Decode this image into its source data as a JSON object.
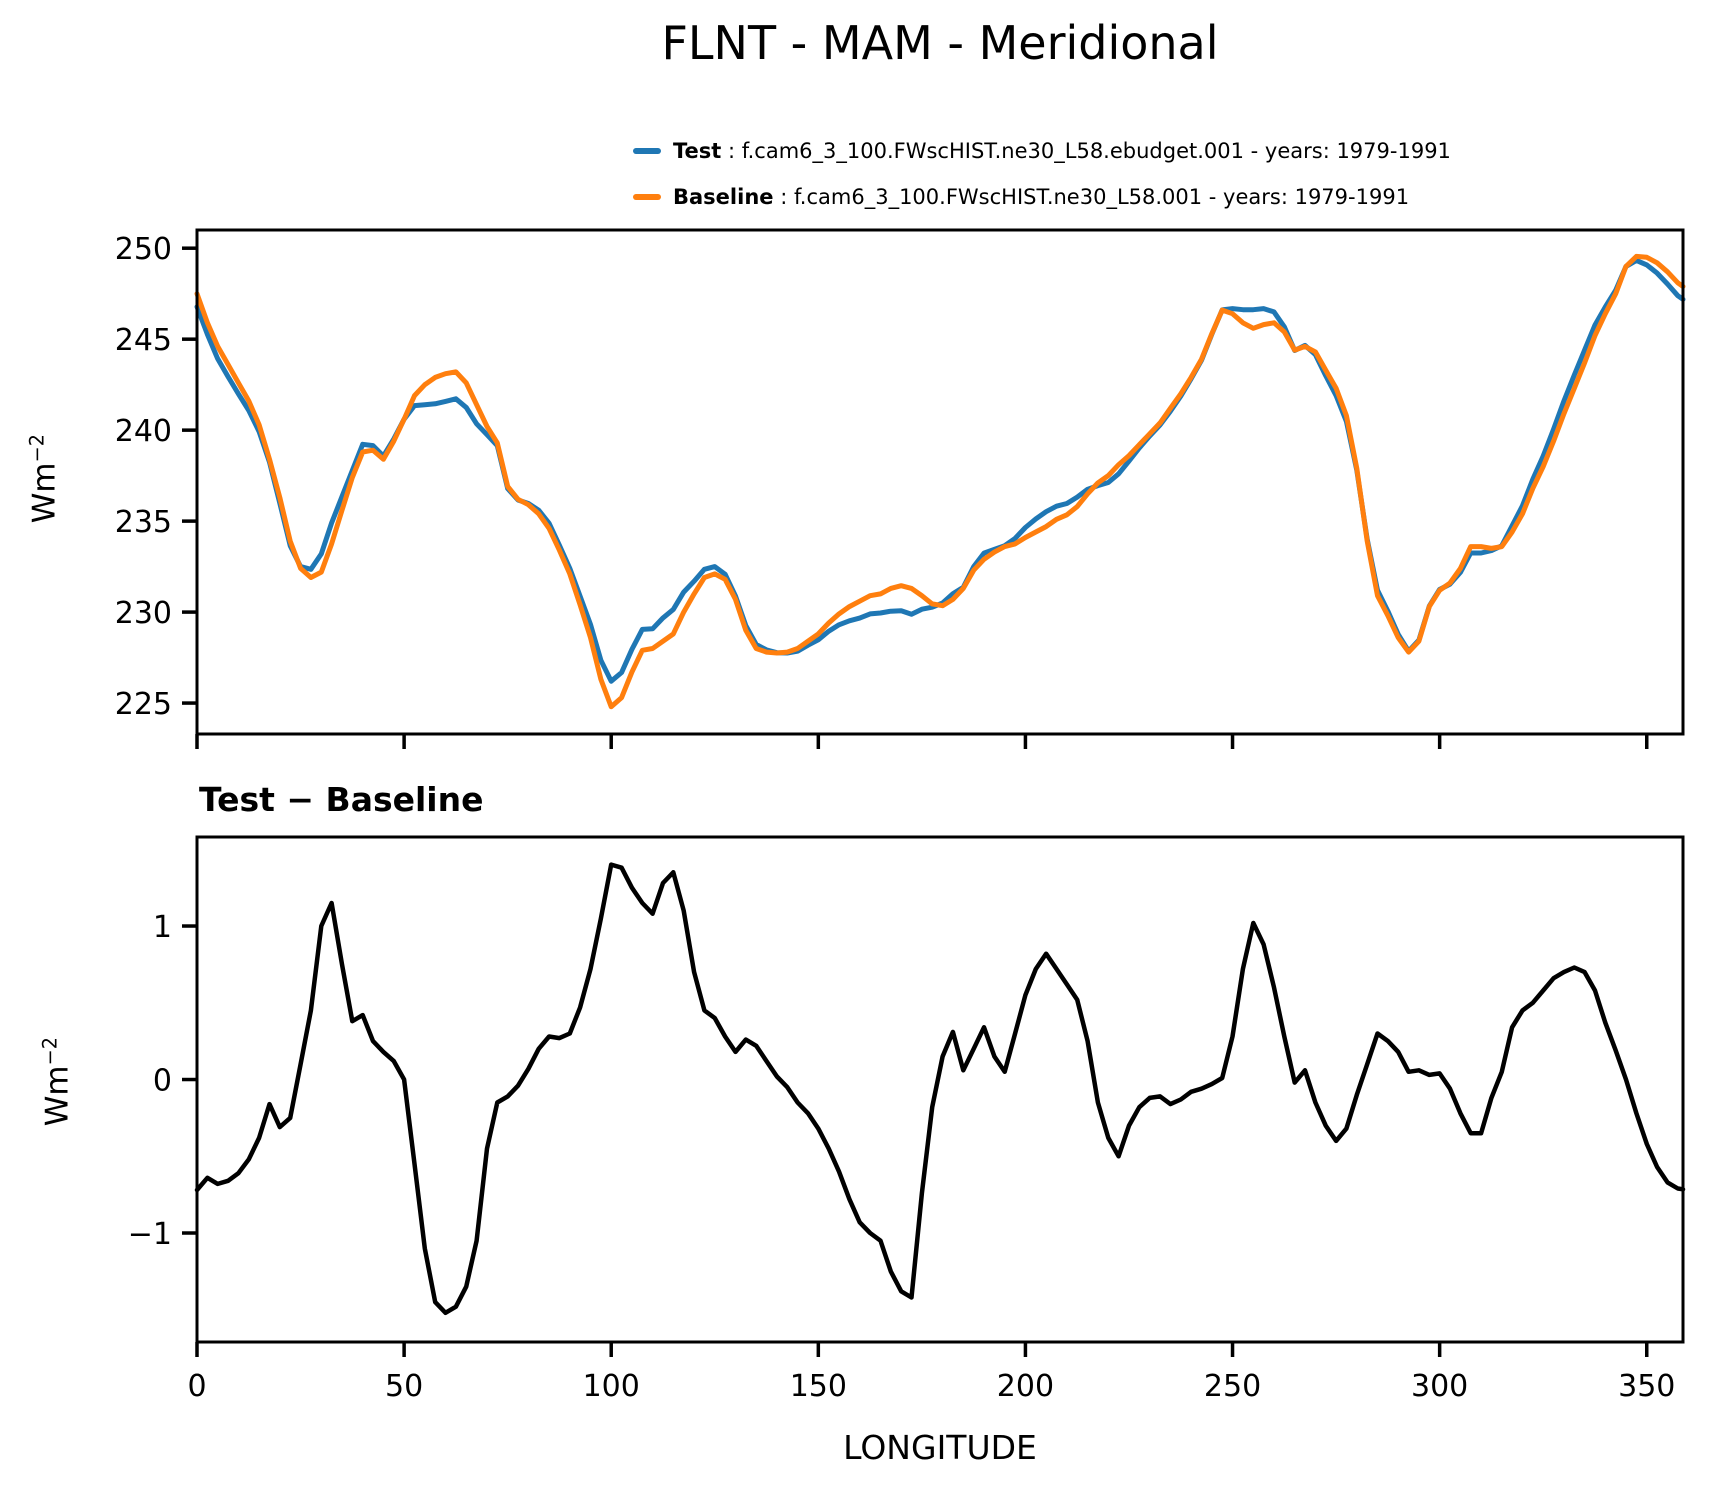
{
  "title": "FLNT - MAM - Meridional",
  "legend": {
    "test_label": "Test",
    "test_desc": " : f.cam6_3_100.FWscHIST.ne30_L58.ebudget.001 - years: 1979-1991",
    "baseline_label": "Baseline",
    "baseline_desc": " : f.cam6_3_100.FWscHIST.ne30_L58.001 - years: 1979-1991"
  },
  "labels": {
    "ylabel_base": "Wm",
    "ylabel_exp": "−2",
    "diff_title": "Test − Baseline",
    "xlabel": "LONGITUDE"
  },
  "colors": {
    "test": "#1f77b4",
    "baseline": "#ff7f0e",
    "diff": "#000000"
  },
  "chart_data": [
    {
      "type": "line",
      "title": "FLNT - MAM - Meridional",
      "xlabel": "",
      "ylabel": "Wm^-2",
      "xlim": [
        0,
        358.75
      ],
      "ylim": [
        223.3,
        251.0
      ],
      "grid": false,
      "legend_position": "above-right",
      "xticks": {
        "values": [
          0,
          50,
          100,
          150,
          200,
          250,
          300,
          350
        ],
        "labels": null
      },
      "yticks": {
        "values": [
          225,
          230,
          235,
          240,
          245,
          250
        ],
        "labels": [
          "225",
          "230",
          "235",
          "240",
          "245",
          "250"
        ]
      },
      "x": [
        0,
        2.5,
        5,
        7.5,
        10,
        12.5,
        15,
        17.5,
        20,
        22.5,
        25,
        27.5,
        30,
        32.5,
        35,
        37.5,
        40,
        42.5,
        45,
        47.5,
        50,
        52.5,
        55,
        57.5,
        60,
        62.5,
        65,
        67.5,
        70,
        72.5,
        75,
        77.5,
        80,
        82.5,
        85,
        87.5,
        90,
        92.5,
        95,
        97.5,
        100,
        102.5,
        105,
        107.5,
        110,
        112.5,
        115,
        117.5,
        120,
        122.5,
        125,
        127.5,
        130,
        132.5,
        135,
        137.5,
        140,
        142.5,
        145,
        147.5,
        150,
        152.5,
        155,
        157.5,
        160,
        162.5,
        165,
        167.5,
        170,
        172.5,
        175,
        177.5,
        180,
        182.5,
        185,
        187.5,
        190,
        192.5,
        195,
        197.5,
        200,
        202.5,
        205,
        207.5,
        210,
        212.5,
        215,
        217.5,
        220,
        222.5,
        225,
        227.5,
        230,
        232.5,
        235,
        237.5,
        240,
        242.5,
        245,
        247.5,
        250,
        252.5,
        255,
        257.5,
        260,
        262.5,
        265,
        267.5,
        270,
        272.5,
        275,
        277.5,
        280,
        282.5,
        285,
        287.5,
        290,
        292.5,
        295,
        297.5,
        300,
        302.5,
        305,
        307.5,
        310,
        312.5,
        315,
        317.5,
        320,
        322.5,
        325,
        327.5,
        330,
        332.5,
        335,
        337.5,
        340,
        342.5,
        345,
        347.5,
        350,
        352.5,
        355,
        357.5,
        358.75
      ],
      "series": [
        {
          "name": "Test",
          "color": "test",
          "width": 5,
          "values": [
            246.78,
            245.26,
            243.92,
            242.94,
            241.99,
            241.08,
            239.92,
            238.24,
            235.99,
            233.65,
            232.5,
            232.35,
            233.2,
            234.9,
            236.35,
            237.78,
            239.22,
            239.15,
            238.58,
            239.52,
            240.6,
            241.35,
            241.4,
            241.45,
            241.58,
            241.72,
            241.25,
            240.35,
            239.75,
            239.15,
            236.79,
            236.16,
            235.97,
            235.6,
            234.88,
            233.67,
            232.4,
            230.87,
            229.32,
            227.35,
            226.2,
            226.68,
            227.95,
            229.05,
            229.08,
            229.68,
            230.15,
            231.1,
            231.7,
            232.35,
            232.5,
            232.08,
            230.88,
            229.26,
            228.22,
            227.92,
            227.77,
            227.75,
            227.85,
            228.18,
            228.48,
            228.95,
            229.3,
            229.52,
            229.67,
            229.9,
            229.95,
            230.05,
            230.07,
            229.88,
            230.16,
            230.27,
            230.5,
            231.01,
            231.36,
            232.5,
            233.24,
            233.45,
            233.65,
            234.05,
            234.65,
            235.12,
            235.52,
            235.82,
            235.97,
            236.32,
            236.75,
            236.95,
            237.12,
            237.6,
            238.3,
            239.02,
            239.68,
            240.29,
            241.04,
            241.87,
            242.82,
            243.84,
            245.27,
            246.61,
            246.68,
            246.62,
            246.62,
            246.68,
            246.5,
            245.68,
            244.38,
            244.66,
            244.15,
            243.0,
            241.9,
            240.48,
            237.8,
            234.0,
            231.2,
            230.05,
            228.78,
            227.85,
            228.46,
            230.33,
            231.24,
            231.54,
            232.18,
            233.25,
            233.25,
            233.38,
            233.65,
            234.74,
            235.85,
            237.3,
            238.58,
            240.06,
            241.6,
            243.03,
            244.4,
            245.78,
            246.77,
            247.69,
            249.0,
            249.33,
            249.08,
            248.63,
            248.03,
            247.39,
            247.19
          ]
        },
        {
          "name": "Baseline",
          "color": "baseline",
          "width": 5,
          "values": [
            247.5,
            245.9,
            244.6,
            243.6,
            242.6,
            241.6,
            240.3,
            238.4,
            236.3,
            233.9,
            232.4,
            231.9,
            232.2,
            233.75,
            235.6,
            237.4,
            238.8,
            238.9,
            238.4,
            239.4,
            240.6,
            241.9,
            242.5,
            242.9,
            243.1,
            243.2,
            242.6,
            241.4,
            240.2,
            239.3,
            236.9,
            236.2,
            235.9,
            235.4,
            234.6,
            233.4,
            232.1,
            230.4,
            228.6,
            226.3,
            224.8,
            225.3,
            226.7,
            227.9,
            228.0,
            228.4,
            228.8,
            230.0,
            231.0,
            231.9,
            232.1,
            231.8,
            230.7,
            229.0,
            228.0,
            227.8,
            227.75,
            227.8,
            228.0,
            228.4,
            228.8,
            229.4,
            229.9,
            230.3,
            230.6,
            230.9,
            231.0,
            231.3,
            231.45,
            231.3,
            230.9,
            230.45,
            230.35,
            230.7,
            231.3,
            232.3,
            232.9,
            233.3,
            233.6,
            233.75,
            234.1,
            234.4,
            234.7,
            235.1,
            235.35,
            235.8,
            236.5,
            237.1,
            237.5,
            238.1,
            238.6,
            239.2,
            239.8,
            240.4,
            241.2,
            242.0,
            242.9,
            243.9,
            245.3,
            246.6,
            246.4,
            245.9,
            245.6,
            245.8,
            245.9,
            245.4,
            244.4,
            244.6,
            244.3,
            243.3,
            242.3,
            240.8,
            237.9,
            233.9,
            230.9,
            229.8,
            228.6,
            227.8,
            228.4,
            230.3,
            231.2,
            231.6,
            232.4,
            233.6,
            233.6,
            233.5,
            233.6,
            234.4,
            235.4,
            236.8,
            238.0,
            239.4,
            240.9,
            242.3,
            243.7,
            245.2,
            246.4,
            247.5,
            249.0,
            249.55,
            249.5,
            249.2,
            248.7,
            248.1,
            247.9
          ]
        }
      ]
    },
    {
      "type": "line",
      "title": "Test − Baseline",
      "xlabel": "LONGITUDE",
      "ylabel": "Wm^-2",
      "xlim": [
        0,
        358.75
      ],
      "ylim": [
        -1.71,
        1.58
      ],
      "grid": false,
      "xticks": {
        "values": [
          0,
          50,
          100,
          150,
          200,
          250,
          300,
          350
        ],
        "labels": [
          "0",
          "50",
          "100",
          "150",
          "200",
          "250",
          "300",
          "350"
        ]
      },
      "yticks": {
        "values": [
          -1,
          0,
          1
        ],
        "labels": [
          "−1",
          "0",
          "1"
        ]
      },
      "x": [
        0,
        2.5,
        5,
        7.5,
        10,
        12.5,
        15,
        17.5,
        20,
        22.5,
        25,
        27.5,
        30,
        32.5,
        35,
        37.5,
        40,
        42.5,
        45,
        47.5,
        50,
        52.5,
        55,
        57.5,
        60,
        62.5,
        65,
        67.5,
        70,
        72.5,
        75,
        77.5,
        80,
        82.5,
        85,
        87.5,
        90,
        92.5,
        95,
        97.5,
        100,
        102.5,
        105,
        107.5,
        110,
        112.5,
        115,
        117.5,
        120,
        122.5,
        125,
        127.5,
        130,
        132.5,
        135,
        137.5,
        140,
        142.5,
        145,
        147.5,
        150,
        152.5,
        155,
        157.5,
        160,
        162.5,
        165,
        167.5,
        170,
        172.5,
        175,
        177.5,
        180,
        182.5,
        185,
        187.5,
        190,
        192.5,
        195,
        197.5,
        200,
        202.5,
        205,
        207.5,
        210,
        212.5,
        215,
        217.5,
        220,
        222.5,
        225,
        227.5,
        230,
        232.5,
        235,
        237.5,
        240,
        242.5,
        245,
        247.5,
        250,
        252.5,
        255,
        257.5,
        260,
        262.5,
        265,
        267.5,
        270,
        272.5,
        275,
        277.5,
        280,
        282.5,
        285,
        287.5,
        290,
        292.5,
        295,
        297.5,
        300,
        302.5,
        305,
        307.5,
        310,
        312.5,
        315,
        317.5,
        320,
        322.5,
        325,
        327.5,
        330,
        332.5,
        335,
        337.5,
        340,
        342.5,
        345,
        347.5,
        350,
        352.5,
        355,
        357.5,
        358.75
      ],
      "series": [
        {
          "name": "Test − Baseline",
          "color": "diff",
          "width": 4.5,
          "values": [
            -0.72,
            -0.64,
            -0.68,
            -0.66,
            -0.61,
            -0.52,
            -0.38,
            -0.16,
            -0.31,
            -0.25,
            0.1,
            0.45,
            1.0,
            1.15,
            0.75,
            0.38,
            0.42,
            0.25,
            0.18,
            0.12,
            0.0,
            -0.55,
            -1.1,
            -1.45,
            -1.52,
            -1.48,
            -1.35,
            -1.05,
            -0.45,
            -0.15,
            -0.11,
            -0.04,
            0.07,
            0.2,
            0.28,
            0.27,
            0.3,
            0.47,
            0.72,
            1.05,
            1.4,
            1.38,
            1.25,
            1.15,
            1.08,
            1.28,
            1.35,
            1.1,
            0.7,
            0.45,
            0.4,
            0.28,
            0.18,
            0.26,
            0.22,
            0.12,
            0.02,
            -0.05,
            -0.15,
            -0.22,
            -0.32,
            -0.45,
            -0.6,
            -0.78,
            -0.93,
            -1.0,
            -1.05,
            -1.25,
            -1.38,
            -1.42,
            -0.74,
            -0.18,
            0.15,
            0.31,
            0.06,
            0.2,
            0.34,
            0.15,
            0.05,
            0.3,
            0.55,
            0.72,
            0.82,
            0.72,
            0.62,
            0.52,
            0.25,
            -0.15,
            -0.38,
            -0.5,
            -0.3,
            -0.18,
            -0.12,
            -0.11,
            -0.16,
            -0.13,
            -0.08,
            -0.06,
            -0.03,
            0.01,
            0.28,
            0.72,
            1.02,
            0.88,
            0.6,
            0.28,
            -0.02,
            0.06,
            -0.15,
            -0.3,
            -0.4,
            -0.32,
            -0.1,
            0.1,
            0.3,
            0.25,
            0.18,
            0.05,
            0.06,
            0.03,
            0.04,
            -0.06,
            -0.22,
            -0.35,
            -0.35,
            -0.12,
            0.05,
            0.34,
            0.45,
            0.5,
            0.58,
            0.66,
            0.7,
            0.73,
            0.7,
            0.58,
            0.37,
            0.19,
            0.0,
            -0.22,
            -0.42,
            -0.57,
            -0.67,
            -0.71,
            -0.715
          ]
        }
      ]
    }
  ]
}
